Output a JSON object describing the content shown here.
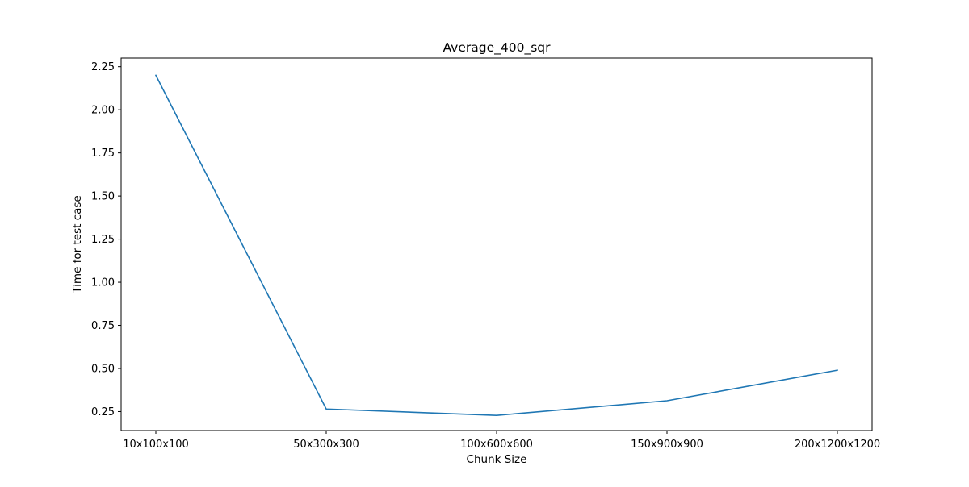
{
  "chart_data": {
    "type": "line",
    "title": "Average_400_sqr",
    "xlabel": "Chunk Size",
    "ylabel": "Time for test case",
    "categories": [
      "10x100x100",
      "50x300x300",
      "100x600x600",
      "150x900x900",
      "200x1200x1200"
    ],
    "series": [
      {
        "values": [
          2.2,
          0.265,
          0.228,
          0.313,
          0.49
        ],
        "color": "#1f77b4"
      }
    ],
    "ylim": [
      0.14,
      2.3
    ],
    "yticks": [
      0.25,
      0.5,
      0.75,
      1.0,
      1.25,
      1.5,
      1.75,
      2.0,
      2.25
    ],
    "ytick_labels": [
      "0.25",
      "0.50",
      "0.75",
      "1.00",
      "1.25",
      "1.50",
      "1.75",
      "2.00",
      "2.25"
    ],
    "grid": false,
    "legend": false
  }
}
